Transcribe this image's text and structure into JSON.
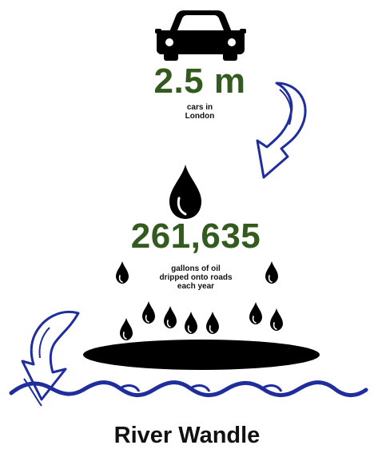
{
  "colors": {
    "accent_green": "#335b1e",
    "arrow_blue": "#1f2e9c",
    "wave_blue": "#1f2e9c",
    "icon_black": "#000000"
  },
  "icons": {
    "car": "car-icon",
    "big_drop": "oil-drop-icon",
    "small_drops": "oil-drop-icon",
    "puddle": "oil-puddle-icon",
    "arrows": "curved-arrow-icon",
    "waves": "water-waves-icon"
  },
  "cars": {
    "value": "2.5 m",
    "label_line1": "cars in",
    "label_line2": "London"
  },
  "oil": {
    "value": "261,635",
    "label_line1": "gallons of oil",
    "label_line2": "dripped onto roads",
    "label_line3": "each year"
  },
  "river": {
    "title": "River Wandle"
  }
}
